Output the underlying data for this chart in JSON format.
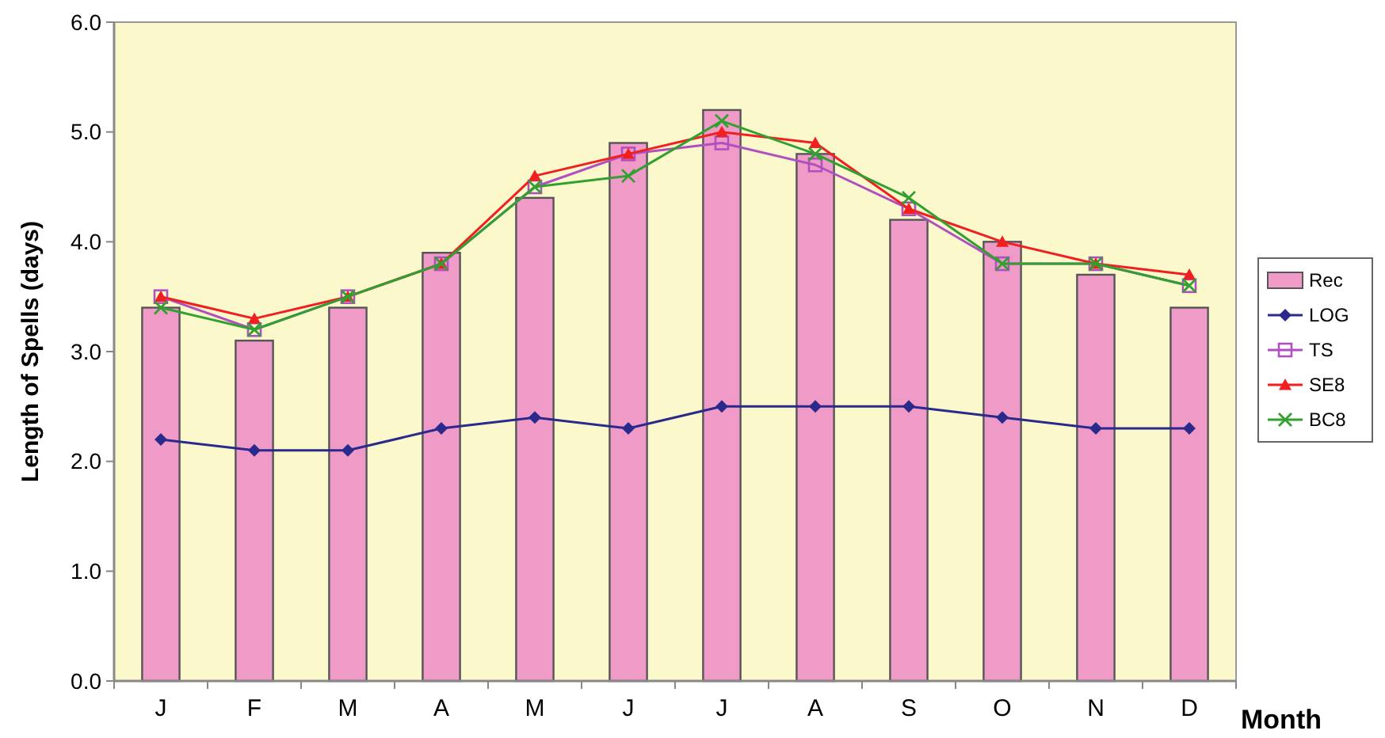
{
  "chart_data": {
    "type": "bar",
    "xlabel": "Month",
    "ylabel": "Length of Spells (days)",
    "categories": [
      "J",
      "F",
      "M",
      "A",
      "M",
      "J",
      "J",
      "A",
      "S",
      "O",
      "N",
      "D"
    ],
    "ylim": [
      0,
      6
    ],
    "yticks": [
      {
        "value": 0,
        "label": "0.0"
      },
      {
        "value": 1,
        "label": "1.0"
      },
      {
        "value": 2,
        "label": "2.0"
      },
      {
        "value": 3,
        "label": "3.0"
      },
      {
        "value": 4,
        "label": "4.0"
      },
      {
        "value": 5,
        "label": "5.0"
      },
      {
        "value": 6,
        "label": "6.0"
      }
    ],
    "legend": "right",
    "grid": false,
    "series": [
      {
        "name": "Rec",
        "color": "#f09ac8",
        "values": [
          3.4,
          3.1,
          3.4,
          3.9,
          4.4,
          4.9,
          5.2,
          4.8,
          4.2,
          4.0,
          3.7,
          3.4
        ]
      },
      {
        "name": "LOG",
        "type": "line",
        "marker": "diamond",
        "color": "#2a2a8c",
        "values": [
          2.2,
          2.1,
          2.1,
          2.3,
          2.4,
          2.3,
          2.5,
          2.5,
          2.5,
          2.4,
          2.3,
          2.3
        ]
      },
      {
        "name": "TS",
        "type": "line",
        "marker": "square",
        "color": "#b050c0",
        "values": [
          3.5,
          3.2,
          3.5,
          3.8,
          4.5,
          4.8,
          4.9,
          4.7,
          4.3,
          3.8,
          3.8,
          3.6
        ]
      },
      {
        "name": "SE8",
        "type": "line",
        "marker": "triangle",
        "color": "#f02020",
        "values": [
          3.5,
          3.3,
          3.5,
          3.8,
          4.6,
          4.8,
          5.0,
          4.9,
          4.3,
          4.0,
          3.8,
          3.7
        ]
      },
      {
        "name": "BC8",
        "type": "line",
        "marker": "cross",
        "color": "#30a030",
        "values": [
          3.4,
          3.2,
          3.5,
          3.8,
          4.5,
          4.6,
          5.1,
          4.8,
          4.4,
          3.8,
          3.8,
          3.6
        ]
      }
    ]
  }
}
